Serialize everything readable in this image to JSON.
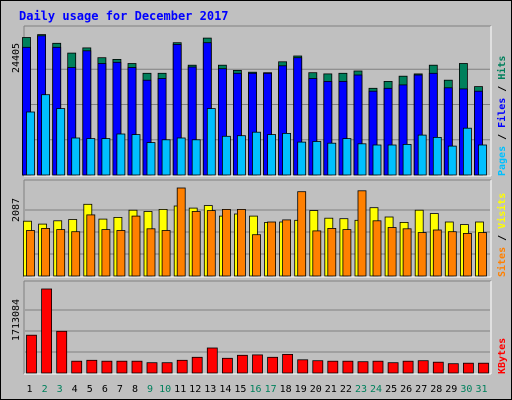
{
  "colors": {
    "background": "#c0c0c0",
    "panel": "#c0c0c0",
    "grid": "#808080",
    "title": "#0000ff",
    "hits": "#00805c",
    "files": "#0000ff",
    "pages": "#00c0ff",
    "visits": "#ffff00",
    "sites": "#ff8000",
    "kbytes": "#ff0000",
    "weekday_label": "#000000",
    "weekend_label": "#00805c"
  },
  "chart_data": {
    "type": "bar",
    "title": "Daily usage for December 2017",
    "x": [
      "1",
      "2",
      "3",
      "4",
      "5",
      "6",
      "7",
      "8",
      "9",
      "10",
      "11",
      "12",
      "13",
      "14",
      "15",
      "16",
      "17",
      "18",
      "19",
      "20",
      "21",
      "22",
      "23",
      "24",
      "25",
      "26",
      "27",
      "28",
      "29",
      "30",
      "31"
    ],
    "weekend_days": [
      "2",
      "3",
      "9",
      "10",
      "16",
      "17",
      "23",
      "24",
      "30",
      "31"
    ],
    "panels": [
      {
        "name": "requests",
        "ymax": 24405,
        "ymax_label": "24405",
        "legend": [
          "Pages",
          "Files",
          "Hits"
        ],
        "series": [
          {
            "name": "Hits",
            "values": [
              23800,
              24300,
              22800,
              21100,
              22000,
              20300,
              20000,
              19300,
              17600,
              17600,
              22900,
              19000,
              23700,
              19000,
              18100,
              17800,
              17700,
              19600,
              20600,
              17700,
              17500,
              17600,
              18000,
              15000,
              16200,
              17100,
              17500,
              19000,
              16400,
              19300,
              15300
            ]
          },
          {
            "name": "Files",
            "values": [
              22100,
              24100,
              22100,
              18600,
              21500,
              19300,
              19500,
              18600,
              16400,
              16700,
              22600,
              18700,
              22900,
              18400,
              17600,
              17600,
              17600,
              18900,
              20300,
              16700,
              16200,
              16200,
              17300,
              14500,
              15000,
              15600,
              17300,
              17600,
              15100,
              14900,
              14500
            ]
          },
          {
            "name": "Pages",
            "values": [
              10900,
              13900,
              11500,
              6400,
              6300,
              6300,
              7100,
              7000,
              5600,
              6100,
              6400,
              6100,
              11500,
              6700,
              6800,
              7400,
              7000,
              7200,
              5700,
              5800,
              5500,
              6300,
              5400,
              5200,
              5200,
              5300,
              6900,
              6500,
              5000,
              8100,
              5200
            ]
          }
        ]
      },
      {
        "name": "visitors",
        "ymax": 2087,
        "ymax_label": "2087",
        "legend": [
          "Sites",
          "Visits"
        ],
        "series": [
          {
            "name": "Visits",
            "values": [
              1300,
              1230,
              1310,
              1340,
              1700,
              1350,
              1390,
              1560,
              1530,
              1580,
              1660,
              1610,
              1670,
              1420,
              1470,
              1420,
              1270,
              1280,
              1320,
              1550,
              1370,
              1360,
              1320,
              1620,
              1400,
              1270,
              1560,
              1480,
              1280,
              1220,
              1280
            ]
          },
          {
            "name": "Sites",
            "values": [
              1080,
              1130,
              1100,
              1050,
              1450,
              1100,
              1080,
              1420,
              1120,
              1080,
              2087,
              1530,
              1550,
              1580,
              1580,
              980,
              1280,
              1330,
              2000,
              1070,
              1130,
              1100,
              2020,
              1310,
              1150,
              1120,
              1030,
              1090,
              1050,
              1010,
              1030
            ]
          }
        ]
      },
      {
        "name": "traffic",
        "ymax": 1713084,
        "ymax_label": "1713084",
        "legend": [
          "KBytes"
        ],
        "series": [
          {
            "name": "KBytes",
            "values": [
              770000,
              1713084,
              850000,
              240000,
              260000,
              240000,
              240000,
              240000,
              210000,
              210000,
              260000,
              320000,
              510000,
              300000,
              360000,
              370000,
              320000,
              380000,
              270000,
              250000,
              240000,
              240000,
              230000,
              240000,
              210000,
              240000,
              250000,
              220000,
              190000,
              200000,
              200000
            ]
          }
        ]
      }
    ]
  }
}
